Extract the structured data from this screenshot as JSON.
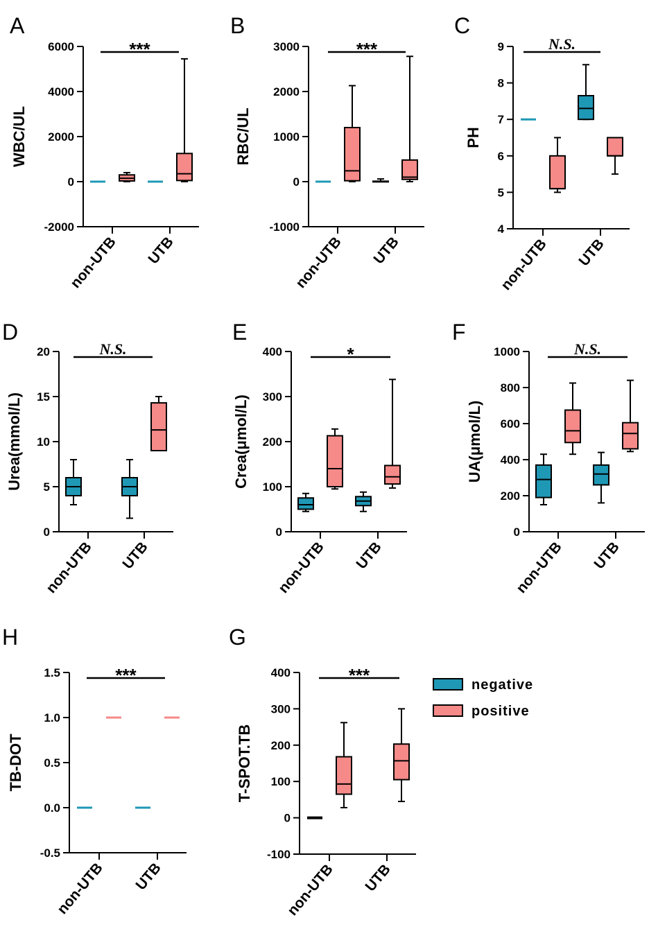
{
  "colors": {
    "negative": "#1f98b5",
    "positive": "#f58a88",
    "line": "#000000"
  },
  "legend": {
    "items": [
      {
        "name": "negative",
        "label": "negative",
        "color": "#1f98b5"
      },
      {
        "name": "positive",
        "label": "positive",
        "color": "#f58a88"
      }
    ]
  },
  "chart_data": [
    {
      "letter": "A",
      "type": "box",
      "ylabel": "WBC/UL",
      "ylim": [
        -2000,
        6000
      ],
      "yticks": [
        -2000,
        0,
        2000,
        4000,
        6000
      ],
      "yticklabels": [
        "-2000",
        "0",
        "2000",
        "4000",
        "6000"
      ],
      "categories": [
        "non-UTB",
        "UTB"
      ],
      "significance": "***",
      "boxes": [
        {
          "category": "non-UTB",
          "series": "negative",
          "flat": true,
          "value": 0
        },
        {
          "category": "non-UTB",
          "series": "positive",
          "min": 0,
          "q1": 30,
          "median": 150,
          "q3": 300,
          "max": 400
        },
        {
          "category": "UTB",
          "series": "negative",
          "flat": true,
          "value": 0
        },
        {
          "category": "UTB",
          "series": "positive",
          "min": 0,
          "q1": 50,
          "median": 350,
          "q3": 1250,
          "max": 5450
        }
      ]
    },
    {
      "letter": "B",
      "type": "box",
      "ylabel": "RBC/UL",
      "ylim": [
        -1000,
        3000
      ],
      "yticks": [
        -1000,
        0,
        1000,
        2000,
        3000
      ],
      "yticklabels": [
        "-1000",
        "0",
        "1000",
        "2000",
        "3000"
      ],
      "categories": [
        "non-UTB",
        "UTB"
      ],
      "significance": "***",
      "boxes": [
        {
          "category": "non-UTB",
          "series": "negative",
          "flat": true,
          "value": 0
        },
        {
          "category": "non-UTB",
          "series": "positive",
          "min": 0,
          "q1": 20,
          "median": 240,
          "q3": 1200,
          "max": 2130
        },
        {
          "category": "UTB",
          "series": "negative",
          "min": 0,
          "q1": 0,
          "median": 0,
          "q3": 10,
          "max": 60
        },
        {
          "category": "UTB",
          "series": "positive",
          "min": 0,
          "q1": 50,
          "median": 100,
          "q3": 480,
          "max": 2780
        }
      ]
    },
    {
      "letter": "C",
      "type": "box",
      "ylabel": "PH",
      "ylim": [
        4,
        9
      ],
      "yticks": [
        4,
        5,
        6,
        7,
        8,
        9
      ],
      "yticklabels": [
        "4",
        "5",
        "6",
        "7",
        "8",
        "9"
      ],
      "categories": [
        "non-UTB",
        "UTB"
      ],
      "significance": "N.S.",
      "boxes": [
        {
          "category": "non-UTB",
          "series": "negative",
          "flat": true,
          "value": 7
        },
        {
          "category": "non-UTB",
          "series": "positive",
          "min": 5,
          "q1": 5.1,
          "median": 5.1,
          "q3": 6,
          "max": 6.5
        },
        {
          "category": "UTB",
          "series": "negative",
          "min": 7,
          "q1": 7,
          "median": 7.3,
          "q3": 7.65,
          "max": 8.5
        },
        {
          "category": "UTB",
          "series": "positive",
          "min": 5.5,
          "q1": 6,
          "median": 6,
          "q3": 6.5,
          "max": 6.5
        }
      ]
    },
    {
      "letter": "D",
      "type": "box",
      "ylabel": "Urea(mmol/L)",
      "ylim": [
        0,
        20
      ],
      "yticks": [
        0,
        5,
        10,
        15,
        20
      ],
      "yticklabels": [
        "0",
        "5",
        "10",
        "15",
        "20"
      ],
      "categories": [
        "non-UTB",
        "UTB"
      ],
      "significance": "N.S.",
      "boxes": [
        {
          "category": "non-UTB",
          "series": "negative",
          "min": 3,
          "q1": 4,
          "median": 5,
          "q3": 6,
          "max": 8
        },
        {
          "category": "UTB",
          "series": "negative",
          "min": 1.5,
          "q1": 4,
          "median": 5,
          "q3": 6,
          "max": 8
        },
        {
          "category": "UTB",
          "series": "positive",
          "min": 9,
          "q1": 9,
          "median": 11.3,
          "q3": 14.3,
          "max": 15
        }
      ]
    },
    {
      "letter": "E",
      "type": "box",
      "ylabel": "Crea(μmol/L)",
      "ylim": [
        0,
        400
      ],
      "yticks": [
        0,
        100,
        200,
        300,
        400
      ],
      "yticklabels": [
        "0",
        "100",
        "200",
        "300",
        "400"
      ],
      "categories": [
        "non-UTB",
        "UTB"
      ],
      "significance": "*",
      "boxes": [
        {
          "category": "non-UTB",
          "series": "negative",
          "min": 45,
          "q1": 50,
          "median": 60,
          "q3": 75,
          "max": 85
        },
        {
          "category": "non-UTB",
          "series": "positive",
          "min": 95,
          "q1": 100,
          "median": 140,
          "q3": 213,
          "max": 228
        },
        {
          "category": "UTB",
          "series": "negative",
          "min": 45,
          "q1": 58,
          "median": 68,
          "q3": 78,
          "max": 88
        },
        {
          "category": "UTB",
          "series": "positive",
          "min": 97,
          "q1": 106,
          "median": 122,
          "q3": 147,
          "max": 338
        }
      ]
    },
    {
      "letter": "F",
      "type": "box",
      "ylabel": "UA(μmol/L)",
      "ylim": [
        0,
        1000
      ],
      "yticks": [
        0,
        200,
        400,
        600,
        800,
        1000
      ],
      "yticklabels": [
        "0",
        "200",
        "400",
        "600",
        "800",
        "1000"
      ],
      "categories": [
        "non-UTB",
        "UTB"
      ],
      "significance": "N.S.",
      "boxes": [
        {
          "category": "non-UTB",
          "series": "negative",
          "min": 150,
          "q1": 190,
          "median": 290,
          "q3": 370,
          "max": 430
        },
        {
          "category": "non-UTB",
          "series": "positive",
          "min": 430,
          "q1": 495,
          "median": 560,
          "q3": 675,
          "max": 825
        },
        {
          "category": "UTB",
          "series": "negative",
          "min": 160,
          "q1": 260,
          "median": 320,
          "q3": 370,
          "max": 440
        },
        {
          "category": "UTB",
          "series": "positive",
          "min": 445,
          "q1": 460,
          "median": 545,
          "q3": 605,
          "max": 840
        }
      ]
    },
    {
      "letter": "H",
      "type": "box",
      "ylabel": "TB-DOT",
      "ylim": [
        -0.5,
        1.5
      ],
      "yticks": [
        -0.5,
        0,
        0.5,
        1,
        1.5
      ],
      "yticklabels": [
        "-0.5",
        "0.0",
        "0.5",
        "1.0",
        "1.5"
      ],
      "categories": [
        "non-UTB",
        "UTB"
      ],
      "significance": "***",
      "boxes": [
        {
          "category": "non-UTB",
          "series": "negative",
          "flat": true,
          "value": 0
        },
        {
          "category": "non-UTB",
          "series": "positive",
          "flat": true,
          "value": 1
        },
        {
          "category": "UTB",
          "series": "negative",
          "flat": true,
          "value": 0
        },
        {
          "category": "UTB",
          "series": "positive",
          "flat": true,
          "value": 1
        }
      ]
    },
    {
      "letter": "G",
      "type": "box",
      "ylabel": "T-SPOT.TB",
      "ylim": [
        -100,
        400
      ],
      "yticks": [
        -100,
        0,
        100,
        200,
        300,
        400
      ],
      "yticklabels": [
        "-100",
        "0",
        "100",
        "200",
        "300",
        "400"
      ],
      "categories": [
        "non-UTB",
        "UTB"
      ],
      "significance": "***",
      "boxes": [
        {
          "category": "non-UTB",
          "series": "negative",
          "flat": true,
          "value": 0,
          "color": "#000000"
        },
        {
          "category": "non-UTB",
          "series": "positive",
          "min": 28,
          "q1": 65,
          "median": 93,
          "q3": 168,
          "max": 262
        },
        {
          "category": "UTB",
          "series": "positive",
          "min": 45,
          "q1": 105,
          "median": 157,
          "q3": 203,
          "max": 300
        }
      ]
    }
  ]
}
